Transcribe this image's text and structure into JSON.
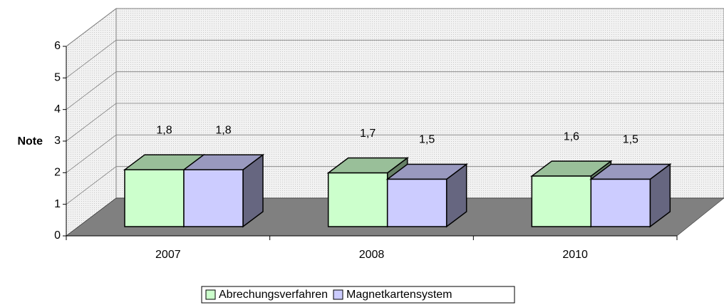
{
  "chart_data": {
    "type": "bar3d",
    "y_label": "Note",
    "categories": [
      "2007",
      "2008",
      "2010"
    ],
    "series": [
      {
        "name": "Abrechungsverfahren",
        "color": "#ccffcc",
        "values": [
          1.8,
          1.7,
          1.6
        ],
        "value_labels": [
          "1,8",
          "1,7",
          "1,6"
        ]
      },
      {
        "name": "Magnetkartensystem",
        "color": "#ccccff",
        "values": [
          1.8,
          1.5,
          1.5
        ],
        "value_labels": [
          "1,8",
          "1,5",
          "1,5"
        ]
      }
    ],
    "ylim": [
      0,
      6
    ],
    "yticks": [
      0,
      1,
      2,
      3,
      4,
      5,
      6
    ],
    "grid": true,
    "legend": "bottom"
  }
}
